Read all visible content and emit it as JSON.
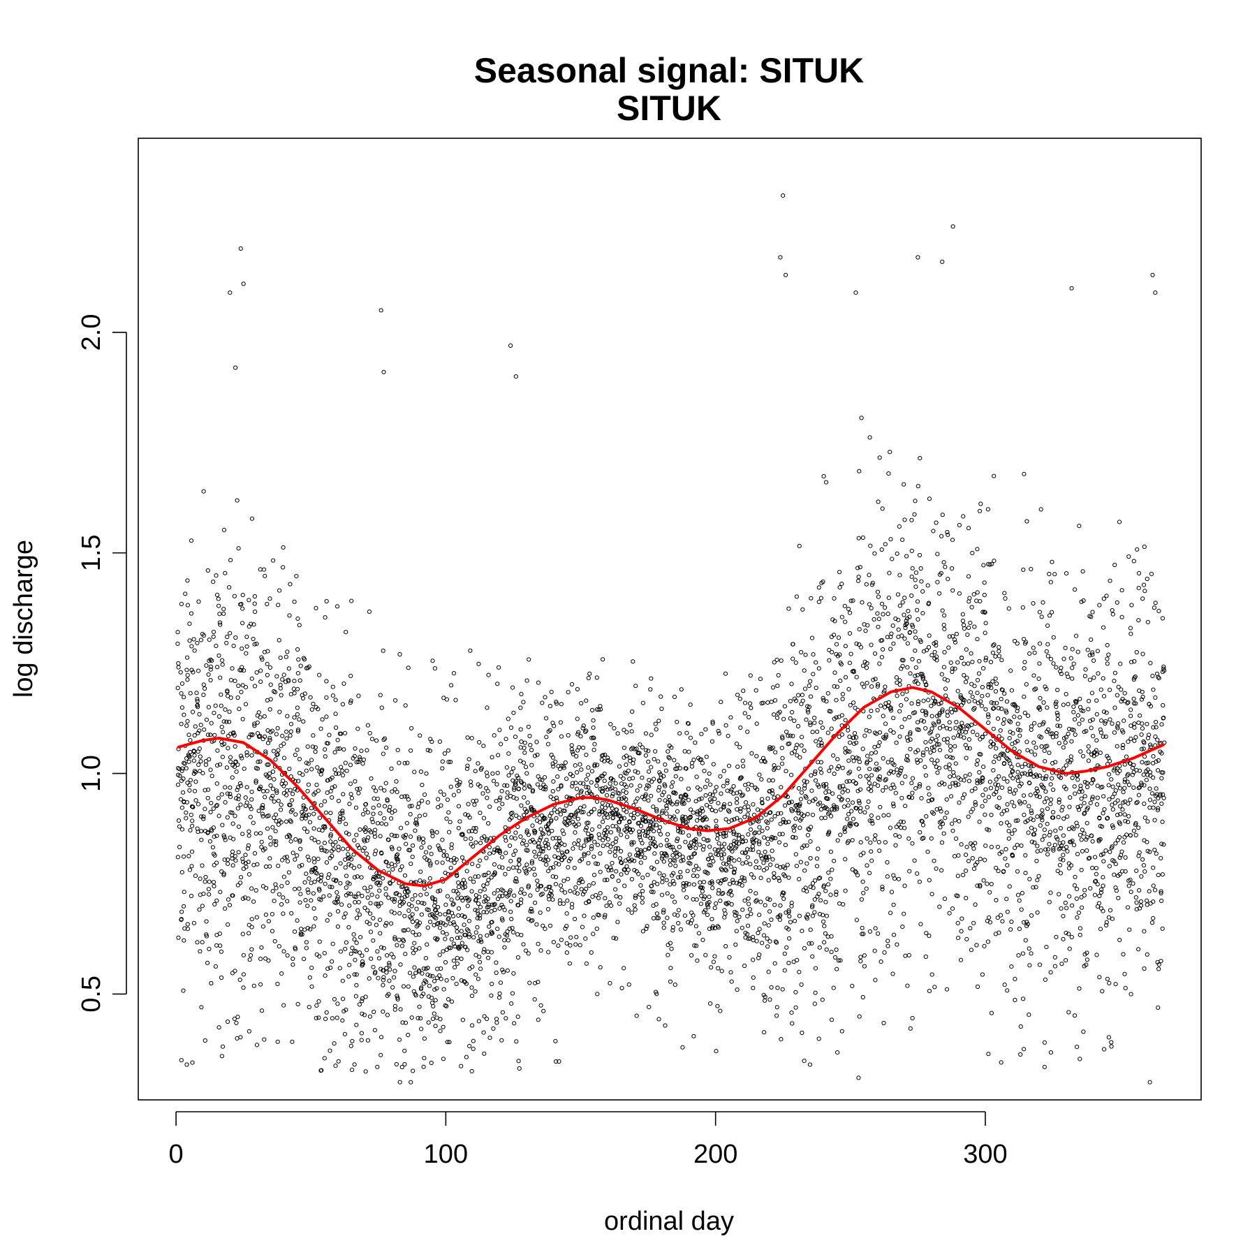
{
  "chart_data": {
    "type": "scatter",
    "title": "Seasonal signal: SITUK",
    "subtitle": "SITUK",
    "xlabel": "ordinal day",
    "ylabel": "log discharge",
    "xlim": [
      -14,
      380
    ],
    "ylim": [
      0.26,
      2.44
    ],
    "x_ticks": [
      0,
      100,
      200,
      300
    ],
    "x_tick_labels": [
      "0",
      "100",
      "200",
      "300"
    ],
    "y_ticks": [
      0.5,
      1.0,
      1.5,
      2.0
    ],
    "y_tick_labels": [
      "0.5",
      "1.0",
      "1.5",
      "2.0"
    ],
    "grid": false,
    "legend": "none",
    "colors": {
      "points": "#000000",
      "fit_line": "#ff0000"
    },
    "series": [
      {
        "kind": "points",
        "marker": "open-circle",
        "note_points": "daily observations across many years; approximated by the seasonal mean envelope below",
        "envelope": {
          "x": [
            1,
            15,
            30,
            45,
            60,
            75,
            90,
            105,
            120,
            135,
            150,
            165,
            180,
            195,
            210,
            225,
            240,
            255,
            270,
            285,
            300,
            315,
            330,
            345,
            365
          ],
          "y_mean": [
            1.06,
            1.07,
            1.05,
            0.98,
            0.88,
            0.79,
            0.75,
            0.76,
            0.84,
            0.91,
            0.94,
            0.93,
            0.9,
            0.88,
            0.87,
            0.92,
            1.02,
            1.13,
            1.19,
            1.18,
            1.12,
            1.04,
            1.01,
            1.02,
            1.06
          ],
          "y_spread": [
            0.42,
            0.44,
            0.44,
            0.42,
            0.4,
            0.38,
            0.36,
            0.34,
            0.32,
            0.3,
            0.26,
            0.22,
            0.22,
            0.24,
            0.28,
            0.4,
            0.46,
            0.46,
            0.44,
            0.44,
            0.42,
            0.42,
            0.4,
            0.4,
            0.42
          ]
        },
        "outliers": [
          {
            "x": 20,
            "y": 2.09
          },
          {
            "x": 24,
            "y": 2.19
          },
          {
            "x": 25,
            "y": 2.11
          },
          {
            "x": 22,
            "y": 1.92
          },
          {
            "x": 76,
            "y": 2.05
          },
          {
            "x": 77,
            "y": 1.91
          },
          {
            "x": 124,
            "y": 1.97
          },
          {
            "x": 126,
            "y": 1.9
          },
          {
            "x": 225,
            "y": 2.31
          },
          {
            "x": 224,
            "y": 2.17
          },
          {
            "x": 226,
            "y": 2.13
          },
          {
            "x": 252,
            "y": 2.09
          },
          {
            "x": 288,
            "y": 2.24
          },
          {
            "x": 275,
            "y": 2.17
          },
          {
            "x": 284,
            "y": 2.16
          },
          {
            "x": 332,
            "y": 2.1
          },
          {
            "x": 362,
            "y": 2.13
          },
          {
            "x": 363,
            "y": 2.09
          },
          {
            "x": 87,
            "y": 0.3
          },
          {
            "x": 83,
            "y": 0.3
          },
          {
            "x": 253,
            "y": 0.31
          },
          {
            "x": 361,
            "y": 0.3
          },
          {
            "x": 2,
            "y": 0.35
          },
          {
            "x": 4,
            "y": 0.34
          },
          {
            "x": 322,
            "y": 0.39
          },
          {
            "x": 235,
            "y": 0.34
          }
        ]
      },
      {
        "kind": "line",
        "color": "#ff0000",
        "x": [
          1,
          10,
          16,
          25,
          35,
          45,
          55,
          65,
          75,
          85,
          92,
          100,
          110,
          120,
          130,
          140,
          150,
          155,
          160,
          170,
          180,
          190,
          197,
          205,
          215,
          225,
          235,
          245,
          255,
          265,
          273,
          280,
          290,
          300,
          310,
          320,
          330,
          337,
          345,
          355,
          366
        ],
        "y": [
          1.06,
          1.075,
          1.08,
          1.07,
          1.03,
          0.97,
          0.9,
          0.83,
          0.78,
          0.75,
          0.745,
          0.76,
          0.81,
          0.86,
          0.9,
          0.93,
          0.945,
          0.945,
          0.94,
          0.92,
          0.895,
          0.875,
          0.87,
          0.875,
          0.9,
          0.95,
          1.02,
          1.09,
          1.15,
          1.185,
          1.195,
          1.185,
          1.15,
          1.1,
          1.05,
          1.015,
          1.0,
          1.005,
          1.015,
          1.035,
          1.065
        ]
      }
    ]
  }
}
